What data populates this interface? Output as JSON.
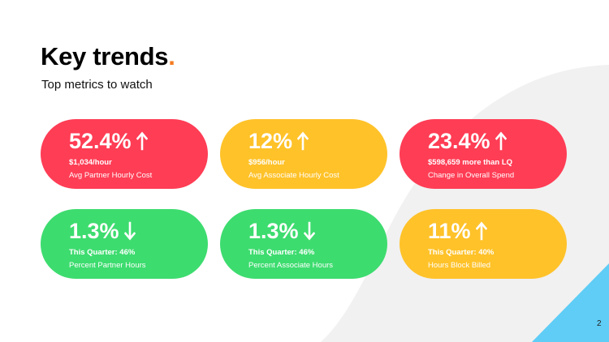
{
  "slide": {
    "title": "Key trends",
    "title_dot": ".",
    "subtitle": "Top metrics to watch",
    "page_number": "2"
  },
  "colors": {
    "red": "#ff3d55",
    "yellow": "#ffc229",
    "green": "#3ddc6f",
    "accent_dot": "#f47b20",
    "corner_triangle": "#5fcdf6",
    "background_curve": "#f1f1f1"
  },
  "cards": [
    {
      "value": "52.4%",
      "direction": "up",
      "detail": "$1,034/hour",
      "label": "Avg Partner Hourly Cost",
      "color": "#ff3d55",
      "arrow_icon": "arrow-up-icon"
    },
    {
      "value": "12%",
      "direction": "up",
      "detail": "$956/hour",
      "label": "Avg Associate Hourly Cost",
      "color": "#ffc229",
      "arrow_icon": "arrow-up-icon"
    },
    {
      "value": "23.4%",
      "direction": "up",
      "detail": "$598,659 more than LQ",
      "label": "Change in Overall Spend",
      "color": "#ff3d55",
      "arrow_icon": "arrow-up-icon"
    },
    {
      "value": "1.3%",
      "direction": "down",
      "detail": "This Quarter: 46%",
      "label": "Percent Partner Hours",
      "color": "#3ddc6f",
      "arrow_icon": "arrow-down-icon"
    },
    {
      "value": "1.3%",
      "direction": "down",
      "detail": "This Quarter: 46%",
      "label": "Percent Associate Hours",
      "color": "#3ddc6f",
      "arrow_icon": "arrow-down-icon"
    },
    {
      "value": "11%",
      "direction": "up",
      "detail": "This Quarter: 40%",
      "label": "Hours Block Billed",
      "color": "#ffc229",
      "arrow_icon": "arrow-up-icon"
    }
  ]
}
